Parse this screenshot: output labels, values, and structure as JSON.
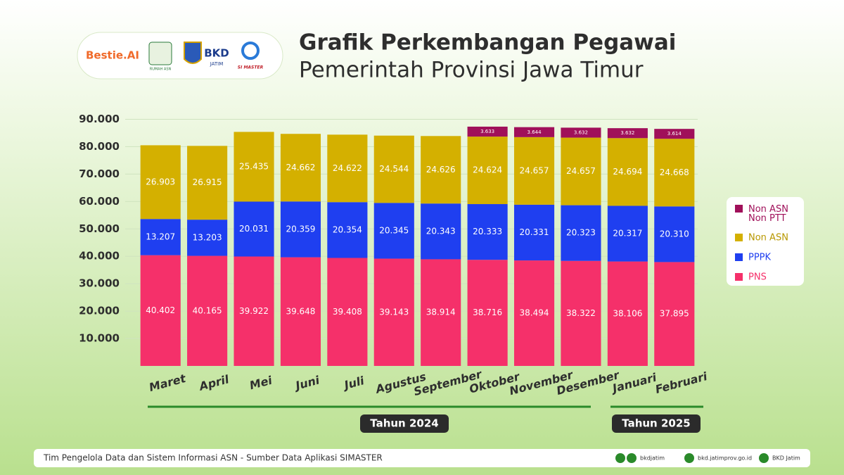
{
  "chart_data": {
    "type": "stacked_bar",
    "title": "Grafik Perkembangan Pegawai",
    "subtitle": "Pemerintah Provinsi Jawa Timur",
    "categories": [
      "Maret",
      "April",
      "Mei",
      "Juni",
      "Juli",
      "Agustus",
      "September",
      "Oktober",
      "November",
      "Desember",
      "Januari",
      "Februari"
    ],
    "series": [
      {
        "name": "PNS",
        "color": "#f5306a",
        "values": [
          40402,
          40165,
          39922,
          39648,
          39408,
          39143,
          38914,
          38716,
          38494,
          38322,
          38106,
          37895
        ],
        "value_labels": [
          "40.402",
          "40.165",
          "39.922",
          "39.648",
          "39.408",
          "39.143",
          "38.914",
          "38.716",
          "38.494",
          "38.322",
          "38.106",
          "37.895"
        ]
      },
      {
        "name": "PPPK",
        "color": "#1f3ff0",
        "values": [
          13207,
          13203,
          20031,
          20359,
          20354,
          20345,
          20343,
          20333,
          20331,
          20323,
          20317,
          20310
        ],
        "value_labels": [
          "13.207",
          "13.203",
          "20.031",
          "20.359",
          "20.354",
          "20.345",
          "20.343",
          "20.333",
          "20.331",
          "20.323",
          "20.317",
          "20.310"
        ]
      },
      {
        "name": "Non ASN",
        "color": "#d4b000",
        "values": [
          26903,
          26915,
          25435,
          24662,
          24622,
          24544,
          24626,
          24624,
          24657,
          24657,
          24694,
          24668
        ],
        "value_labels": [
          "26.903",
          "26.915",
          "25.435",
          "24.662",
          "24.622",
          "24.544",
          "24.626",
          "24.624",
          "24.657",
          "24.657",
          "24.694",
          "24.668"
        ]
      },
      {
        "name": "Non ASN Non PTT",
        "color": "#a0105a",
        "values": [
          null,
          null,
          null,
          null,
          null,
          null,
          null,
          3633,
          3644,
          3632,
          3632,
          3614
        ],
        "value_labels": [
          null,
          null,
          null,
          null,
          null,
          null,
          null,
          "3.633",
          "3.644",
          "3.632",
          "3.632",
          "3.614"
        ]
      }
    ],
    "ylim": [
      0,
      95000
    ],
    "yticks": [
      {
        "value": 10000,
        "label": "10.000"
      },
      {
        "value": 20000,
        "label": "20.000"
      },
      {
        "value": 30000,
        "label": "30.000"
      },
      {
        "value": 40000,
        "label": "40.000"
      },
      {
        "value": 50000,
        "label": "50.000"
      },
      {
        "value": 60000,
        "label": "60.000"
      },
      {
        "value": 70000,
        "label": "70.000"
      },
      {
        "value": 80000,
        "label": "80.000"
      },
      {
        "value": 90000,
        "label": "90.000"
      }
    ],
    "grid": true,
    "legend": "right",
    "annotations": [
      "Tahun 2024",
      "Tahun 2025"
    ]
  },
  "logos": [
    "Bestie.AI",
    "RUMAH ASN",
    "BKD",
    "JATIM",
    "SI MASTER"
  ],
  "footer": {
    "text": "Tim Pengelola Data dan Sistem Informasi ASN - Sumber Data Aplikasi SIMASTER",
    "social": "bkdjatim",
    "website": "bkd.jatimprov.go.id",
    "youtube": "BKD Jatim"
  }
}
